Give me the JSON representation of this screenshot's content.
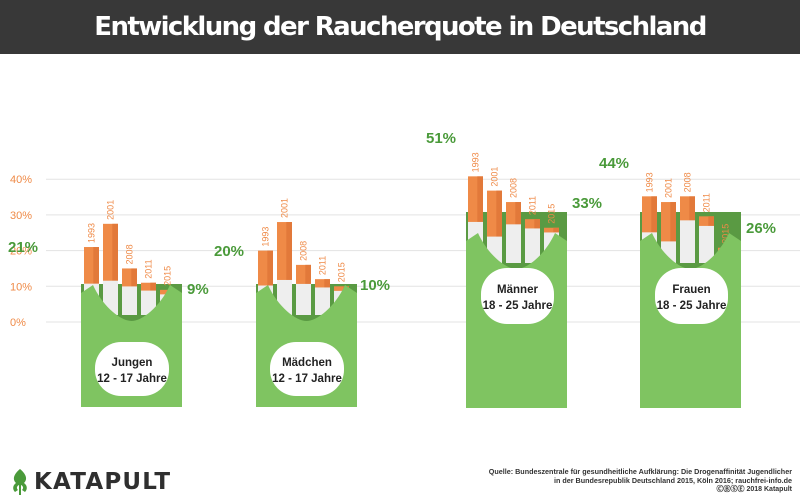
{
  "title": "Entwicklung der Raucherquote in Deutschland",
  "colors": {
    "header_bg": "#383838",
    "orange": "#ef8a47",
    "orange_dark": "#e2793a",
    "white_filter": "#eeeeee",
    "green_pack": "#7fc461",
    "green_dark": "#5a9a43",
    "green_label": "#4a9a3a",
    "axis_text": "#ef8a47",
    "gridline": "#e3e3e3"
  },
  "chart_data": {
    "type": "bar",
    "y_axis": {
      "ticks": [
        "0%",
        "10%",
        "20%",
        "30%",
        "40%"
      ],
      "values": [
        0,
        10,
        20,
        30,
        40
      ],
      "unit": "%",
      "grid": true
    },
    "years": [
      "1993",
      "2001",
      "2008",
      "2011",
      "2015"
    ],
    "groups": [
      {
        "id": "jungen",
        "label_line1": "Jungen",
        "label_line2": "12 - 17 Jahre",
        "start_label": "21%",
        "end_label": "9%",
        "values": [
          21,
          27.5,
          15,
          11,
          9
        ]
      },
      {
        "id": "maedchen",
        "label_line1": "Mädchen",
        "label_line2": "12 - 17 Jahre",
        "start_label": "20%",
        "end_label": "10%",
        "values": [
          20,
          28,
          16,
          12,
          10
        ]
      },
      {
        "id": "maenner",
        "label_line1": "Männer",
        "label_line2": "18 - 25 Jahre",
        "start_label": "51%",
        "end_label": "33%",
        "values": [
          51,
          46,
          42,
          36,
          33
        ]
      },
      {
        "id": "frauen",
        "label_line1": "Frauen",
        "label_line2": "18 - 25 Jahre",
        "start_label": "44%",
        "end_label": "26%",
        "values": [
          44,
          42,
          44,
          37,
          26
        ]
      }
    ]
  },
  "footer": {
    "logo": "KATAPULT",
    "source_line1": "Quelle: Bundeszentrale für gesundheitliche Aufklärung: Die Drogenaffinität Jugendlicher",
    "source_line2": "in der Bundesrepublik Deutschland 2015, Köln 2016; rauchfrei-info.de",
    "source_line3": "ⒸⒷⓈⒺ 2018 Katapult"
  }
}
